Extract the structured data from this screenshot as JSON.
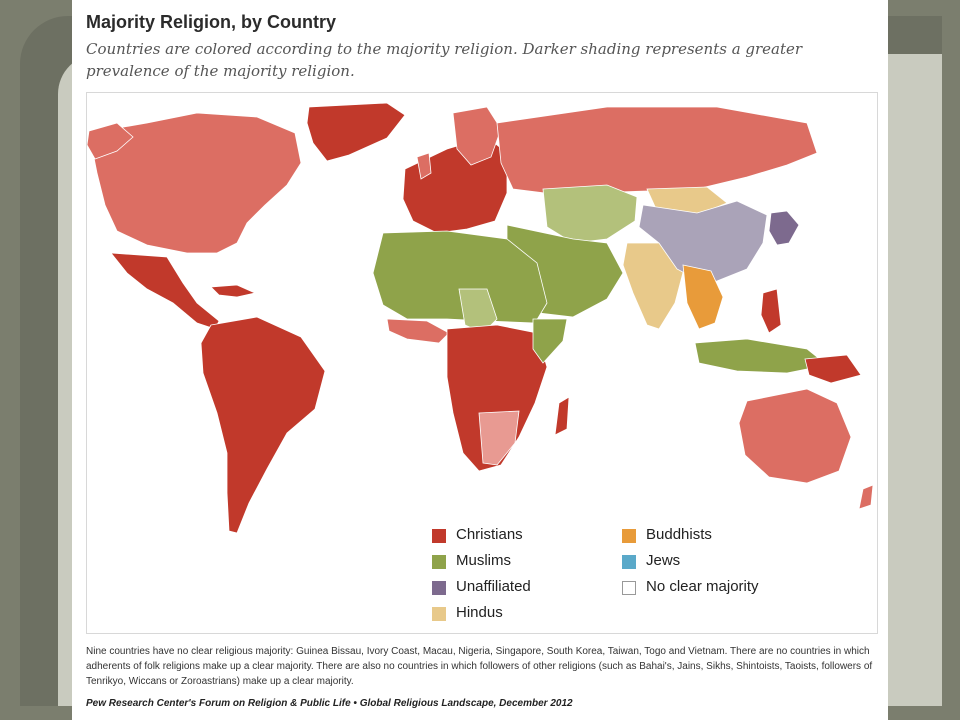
{
  "map": {
    "title": "Majority Religion, by Country",
    "subtitle": "Countries are colored according to the majority religion. Darker shading represents a greater prevalence of the majority religion."
  },
  "legend": {
    "items": [
      {
        "label": "Christians",
        "color": "#c1392b"
      },
      {
        "label": "Muslims",
        "color": "#8fa34a"
      },
      {
        "label": "Unaffiliated",
        "color": "#7d6a8e"
      },
      {
        "label": "Hindus",
        "color": "#e8c98a"
      },
      {
        "label": "Buddhists",
        "color": "#e89b3a"
      },
      {
        "label": "Jews",
        "color": "#5aa9c9"
      },
      {
        "label": "No clear majority",
        "color": "#ffffff"
      }
    ]
  },
  "colors": {
    "christian_dark": "#c1392b",
    "christian_light": "#dc6e63",
    "christian_pale": "#e89a92",
    "muslim": "#8fa34a",
    "muslim_light": "#b3c17b",
    "unaffiliated": "#aaa3b8",
    "unaffiliated_dark": "#7d6a8e",
    "hindu": "#e8c98a",
    "buddhist": "#e89b3a",
    "jews": "#5aa9c9",
    "none": "#ffffff"
  },
  "footnote": "Nine countries have no clear religious majority: Guinea Bissau, Ivory Coast, Macau, Nigeria, Singapore, South Korea, Taiwan, Togo and Vietnam. There are no countries in which adherents of folk religions make up a clear majority. There are also no countries in which followers of other religions (such as Bahai's, Jains, Sikhs, Shintoists, Taoists, followers of Tenrikyo, Wiccans or Zoroastrians) make up a clear majority.",
  "source": "Pew Research Center's Forum on Religion & Public Life • Global Religious Landscape, December 2012"
}
